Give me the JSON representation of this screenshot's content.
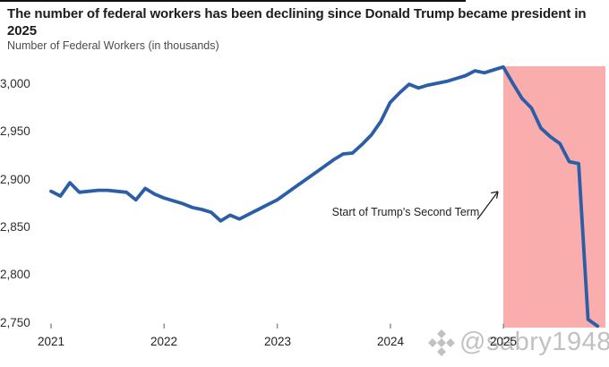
{
  "header": {
    "title": "The number of federal workers has been declining since Donald Trump became president in 2025",
    "subtitle": "Number of Federal Workers (in thousands)"
  },
  "chart_data": {
    "type": "line",
    "title": "The number of federal workers has been declining since Donald Trump became president in 2025",
    "ylabel": "Number of Federal Workers (in thousands)",
    "xlabel": "",
    "grid": false,
    "legend": "none",
    "x_unit": "month",
    "x_start": "2021-01",
    "x_end": "2025-11",
    "years": [
      "2021",
      "2022",
      "2023",
      "2024",
      "2025"
    ],
    "yticks": [
      "3,000",
      "2,950",
      "2,900",
      "2,850",
      "2,800",
      "2,750"
    ],
    "ytick_values": [
      3000,
      2950,
      2900,
      2850,
      2800,
      2750
    ],
    "ylim": [
      2740,
      3020
    ],
    "line_color": "#2b5ea7",
    "series": [
      {
        "name": "Federal workers (in thousands)",
        "values": [
          2887,
          2882,
          2896,
          2886,
          2887,
          2888,
          2888,
          2887,
          2886,
          2878,
          2890,
          2884,
          2880,
          2877,
          2874,
          2870,
          2868,
          2865,
          2856,
          2862,
          2858,
          2863,
          2868,
          2873,
          2878,
          2885,
          2892,
          2899,
          2906,
          2913,
          2920,
          2926,
          2927,
          2936,
          2946,
          2960,
          2980,
          2990,
          2999,
          2995,
          2998,
          3000,
          3002,
          3005,
          3008,
          3013,
          3011,
          3014,
          3017,
          3000,
          2984,
          2974,
          2953,
          2944,
          2937,
          2918,
          2916,
          2753,
          2746
        ]
      }
    ],
    "highlight": {
      "label": "Start of Trump's Second Term",
      "start": "2025-01",
      "start_index": 48,
      "color": "#f9adad"
    },
    "annotation": {
      "text": "Start of Trump's Second Term"
    }
  },
  "watermark": {
    "handle": "@sabry1948",
    "icon": "diamond-logo-icon"
  }
}
